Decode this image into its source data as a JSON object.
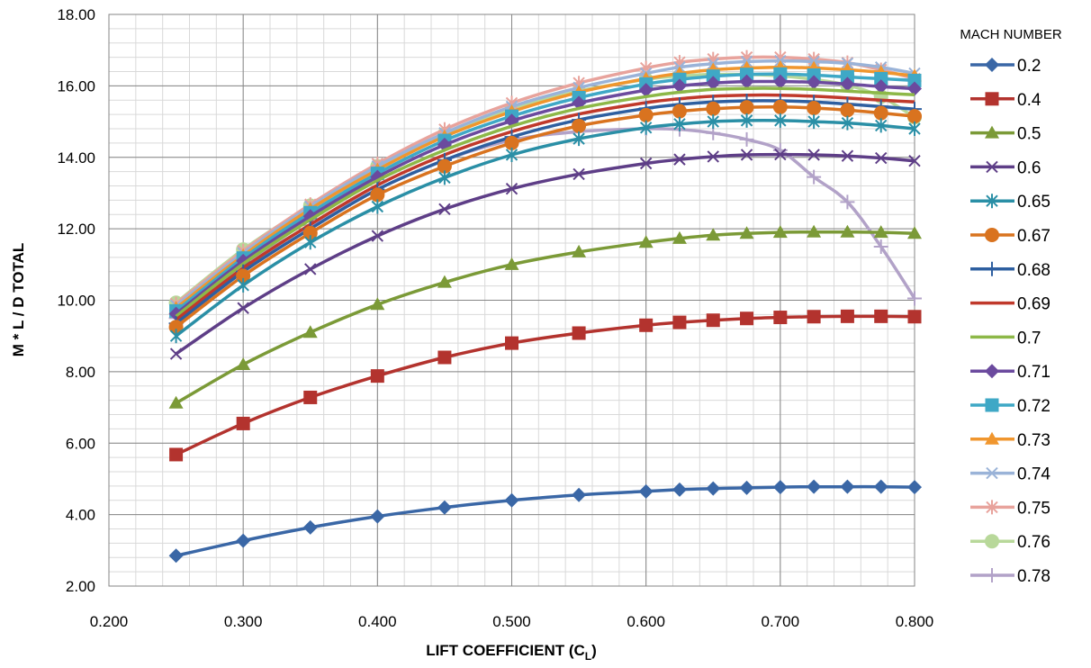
{
  "chart_data": {
    "type": "line",
    "xlabel": "LIFT COEFFICIENT (C",
    "xlabel_subscript": "L",
    "xlabel_suffix": ")",
    "ylabel": "M * L / D TOTAL",
    "xlim": [
      0.2,
      0.8
    ],
    "ylim": [
      2,
      18
    ],
    "x_ticks": [
      0.2,
      0.3,
      0.4,
      0.5,
      0.6,
      0.7,
      0.8
    ],
    "y_ticks": [
      2,
      4,
      6,
      8,
      10,
      12,
      14,
      16,
      18
    ],
    "x_tick_labels": [
      "0.200",
      "0.300",
      "0.400",
      "0.500",
      "0.600",
      "0.700",
      "0.800"
    ],
    "y_tick_labels": [
      "2.00",
      "4.00",
      "6.00",
      "8.00",
      "10.00",
      "12.00",
      "14.00",
      "16.00",
      "18.00"
    ],
    "grid": true,
    "legend_title": "MACH NUMBER",
    "legend_position": "right",
    "x": [
      0.25,
      0.3,
      0.35,
      0.4,
      0.45,
      0.5,
      0.55,
      0.6,
      0.625,
      0.65,
      0.675,
      0.7,
      0.725,
      0.75,
      0.775,
      0.8
    ],
    "series": [
      {
        "name": "0.2",
        "color": "#3a67a6",
        "marker": "diamond",
        "values": [
          2.85,
          3.27,
          3.64,
          3.95,
          4.2,
          4.4,
          4.55,
          4.65,
          4.7,
          4.73,
          4.75,
          4.77,
          4.78,
          4.78,
          4.78,
          4.77
        ]
      },
      {
        "name": "0.4",
        "color": "#b3332e",
        "marker": "square",
        "values": [
          5.68,
          6.55,
          7.28,
          7.88,
          8.4,
          8.8,
          9.08,
          9.3,
          9.38,
          9.44,
          9.49,
          9.52,
          9.54,
          9.55,
          9.55,
          9.54
        ]
      },
      {
        "name": "0.5",
        "color": "#7b9a37",
        "marker": "triangle",
        "values": [
          7.12,
          8.2,
          9.1,
          9.88,
          10.5,
          11.0,
          11.35,
          11.62,
          11.73,
          11.82,
          11.87,
          11.9,
          11.91,
          11.91,
          11.9,
          11.87
        ]
      },
      {
        "name": "0.6",
        "color": "#5e3e87",
        "marker": "x",
        "values": [
          8.5,
          9.78,
          10.87,
          11.8,
          12.55,
          13.12,
          13.53,
          13.83,
          13.94,
          14.02,
          14.07,
          14.08,
          14.07,
          14.04,
          13.98,
          13.9
        ]
      },
      {
        "name": "0.65",
        "color": "#2a8fa6",
        "marker": "star",
        "values": [
          9.0,
          10.42,
          11.62,
          12.62,
          13.43,
          14.07,
          14.52,
          14.83,
          14.93,
          15.0,
          15.03,
          15.03,
          15.0,
          14.96,
          14.89,
          14.8
        ]
      },
      {
        "name": "0.67",
        "color": "#d9731f",
        "marker": "circle",
        "values": [
          9.25,
          10.68,
          11.88,
          12.95,
          13.75,
          14.4,
          14.88,
          15.18,
          15.29,
          15.36,
          15.4,
          15.41,
          15.38,
          15.32,
          15.24,
          15.15
        ]
      },
      {
        "name": "0.68",
        "color": "#2e5fa0",
        "marker": "plus",
        "values": [
          9.35,
          10.8,
          12.0,
          13.1,
          13.92,
          14.57,
          15.05,
          15.37,
          15.48,
          15.55,
          15.58,
          15.58,
          15.55,
          15.49,
          15.42,
          15.35
        ]
      },
      {
        "name": "0.69",
        "color": "#c0392b",
        "marker": "none",
        "values": [
          9.45,
          10.9,
          12.12,
          13.22,
          14.07,
          14.72,
          15.21,
          15.53,
          15.64,
          15.71,
          15.74,
          15.74,
          15.71,
          15.66,
          15.6,
          15.55
        ]
      },
      {
        "name": "0.7",
        "color": "#8db848",
        "marker": "none",
        "values": [
          9.55,
          11.02,
          12.25,
          13.35,
          14.2,
          14.87,
          15.37,
          15.7,
          15.82,
          15.9,
          15.93,
          15.93,
          15.9,
          15.85,
          15.8,
          15.75
        ]
      },
      {
        "name": "0.71",
        "color": "#6b4a9e",
        "marker": "diamond",
        "values": [
          9.62,
          11.1,
          12.35,
          13.45,
          14.35,
          15.02,
          15.52,
          15.88,
          16.0,
          16.08,
          16.12,
          16.12,
          16.1,
          16.05,
          15.98,
          15.92
        ]
      },
      {
        "name": "0.72",
        "color": "#3fa8c6",
        "marker": "square",
        "values": [
          9.7,
          11.18,
          12.45,
          13.55,
          14.47,
          15.15,
          15.67,
          16.05,
          16.18,
          16.27,
          16.32,
          16.33,
          16.3,
          16.25,
          16.2,
          16.15
        ]
      },
      {
        "name": "0.73",
        "color": "#f0962e",
        "marker": "triangle",
        "values": [
          9.78,
          11.25,
          12.55,
          13.65,
          14.58,
          15.28,
          15.82,
          16.2,
          16.35,
          16.45,
          16.5,
          16.52,
          16.5,
          16.45,
          16.38,
          16.28
        ]
      },
      {
        "name": "0.74",
        "color": "#9ab3d8",
        "marker": "x",
        "values": [
          9.85,
          11.32,
          12.62,
          13.75,
          14.68,
          15.42,
          15.95,
          16.35,
          16.52,
          16.62,
          16.68,
          16.7,
          16.68,
          16.63,
          16.52,
          16.35
        ]
      },
      {
        "name": "0.75",
        "color": "#e8a39c",
        "marker": "star",
        "values": [
          9.9,
          11.38,
          12.68,
          13.82,
          14.78,
          15.52,
          16.08,
          16.5,
          16.66,
          16.75,
          16.8,
          16.8,
          16.75,
          16.65,
          16.45,
          16.2
        ]
      },
      {
        "name": "0.76",
        "color": "#b8d89a",
        "marker": "circle",
        "values": [
          9.93,
          11.42,
          12.65,
          13.75,
          14.65,
          15.35,
          15.85,
          16.18,
          16.28,
          16.32,
          16.32,
          16.28,
          16.18,
          16.02,
          15.7,
          15.12
        ]
      },
      {
        "name": "0.78",
        "color": "#b2a2c8",
        "marker": "plus",
        "values": [
          9.5,
          10.95,
          12.1,
          13.1,
          13.92,
          14.48,
          14.72,
          14.8,
          14.78,
          14.68,
          14.5,
          14.2,
          13.45,
          12.75,
          11.5,
          10.05
        ]
      }
    ]
  }
}
